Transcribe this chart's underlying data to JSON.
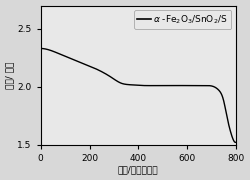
{
  "xlabel": "容量/毫安时每克",
  "ylabel": "电压/ 伏特",
  "xlim": [
    0,
    800
  ],
  "ylim": [
    1.5,
    2.7
  ],
  "yticks": [
    1.5,
    2.0,
    2.5
  ],
  "xticks": [
    0,
    200,
    400,
    600,
    800
  ],
  "line_color": "#000000",
  "background_color": "#d8d8d8",
  "axes_background": "#e8e8e8",
  "legend_line_color": "#000000",
  "curve_x": [
    0,
    30,
    80,
    150,
    220,
    290,
    330,
    350,
    380,
    420,
    480,
    550,
    620,
    680,
    710,
    730,
    750,
    760,
    770,
    780,
    790,
    800
  ],
  "curve_y": [
    2.33,
    2.32,
    2.28,
    2.22,
    2.16,
    2.08,
    2.03,
    2.02,
    2.015,
    2.01,
    2.01,
    2.01,
    2.01,
    2.01,
    2.0,
    1.97,
    1.88,
    1.78,
    1.68,
    1.6,
    1.54,
    1.52
  ]
}
